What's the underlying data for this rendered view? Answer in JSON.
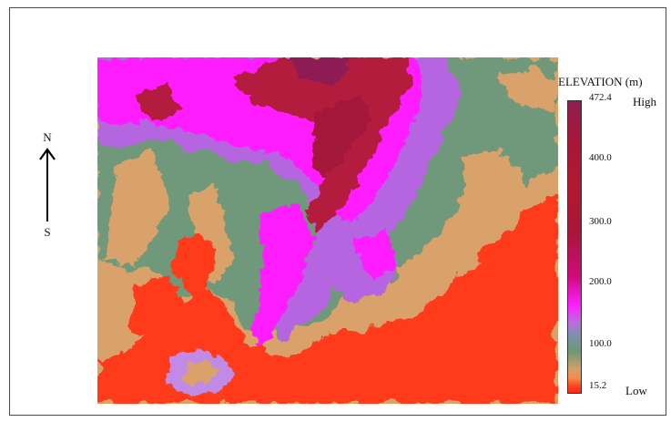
{
  "north_arrow": {
    "top_label": "N",
    "bottom_label": "S"
  },
  "legend": {
    "title": "ELEVATION (m)",
    "max_value": "472.4",
    "min_value": "15.2",
    "high_label": "High",
    "low_label": "Low",
    "ticks": [
      "400.0",
      "300.0",
      "200.0",
      "100.0"
    ]
  },
  "map": {
    "icon": "elevation-raster-map",
    "palette": {
      "lowest": "#ff3a1c",
      "low": "#d9a26a",
      "mid_low": "#6f987a",
      "mid": "#b565e0",
      "mid_high": "#ff1eff",
      "high": "#b31b3c",
      "highest": "#8c1e52"
    }
  }
}
